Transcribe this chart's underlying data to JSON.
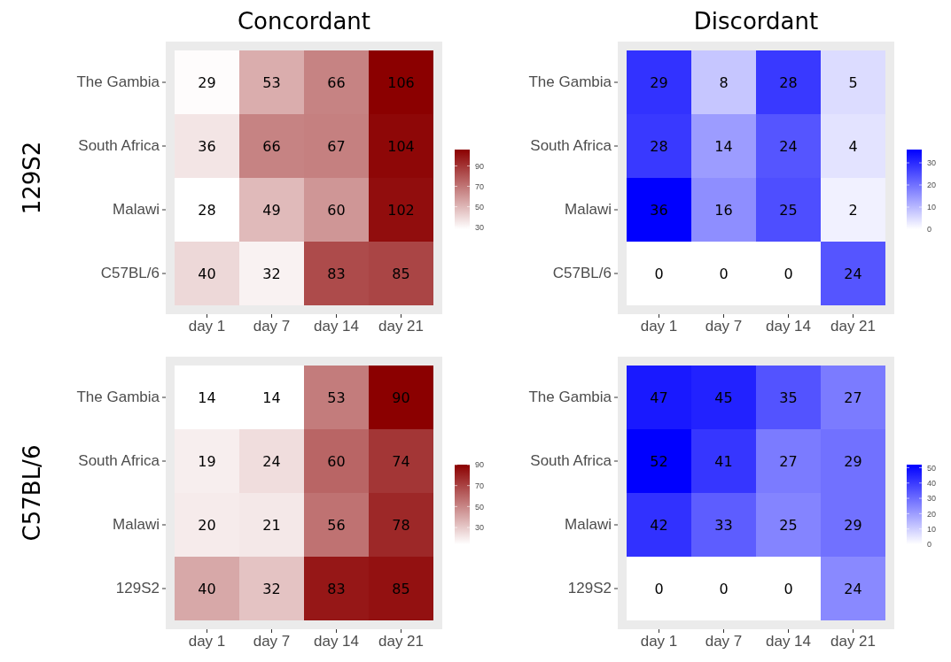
{
  "chart_data": [
    {
      "type": "heatmap",
      "title": "Concordant",
      "ylabel": "129S2",
      "color": "#8b0000",
      "categories": [
        "day 1",
        "day 7",
        "day 14",
        "day 21"
      ],
      "y_categories": [
        "The Gambia",
        "South Africa",
        "Malawi",
        "C57BL/6"
      ],
      "data_labels": true,
      "cells": [
        [
          29,
          53,
          66,
          106
        ],
        [
          36,
          66,
          67,
          104
        ],
        [
          28,
          49,
          60,
          102
        ],
        [
          40,
          32,
          83,
          85
        ]
      ],
      "clim": [
        28,
        106
      ],
      "cticks": [
        30,
        50,
        70,
        90
      ]
    },
    {
      "type": "heatmap",
      "title": "Discordant",
      "color": "#0000ff",
      "categories": [
        "day 1",
        "day 7",
        "day 14",
        "day 21"
      ],
      "y_categories": [
        "The Gambia",
        "South Africa",
        "Malawi",
        "C57BL/6"
      ],
      "data_labels": true,
      "cells": [
        [
          29,
          8,
          28,
          5
        ],
        [
          28,
          14,
          24,
          4
        ],
        [
          36,
          16,
          25,
          2
        ],
        [
          0,
          0,
          0,
          24
        ]
      ],
      "clim": [
        0,
        36
      ],
      "cticks": [
        0,
        10,
        20,
        30
      ]
    },
    {
      "type": "heatmap",
      "ylabel": "C57BL/6",
      "color": "#8b0000",
      "categories": [
        "day 1",
        "day 7",
        "day 14",
        "day 21"
      ],
      "y_categories": [
        "The Gambia",
        "South Africa",
        "Malawi",
        "129S2"
      ],
      "data_labels": true,
      "cells": [
        [
          14,
          14,
          53,
          90
        ],
        [
          19,
          24,
          60,
          74
        ],
        [
          20,
          21,
          56,
          78
        ],
        [
          40,
          32,
          83,
          85
        ]
      ],
      "clim": [
        14,
        90
      ],
      "cticks": [
        30,
        50,
        70,
        90
      ]
    },
    {
      "type": "heatmap",
      "color": "#0000ff",
      "categories": [
        "day 1",
        "day 7",
        "day 14",
        "day 21"
      ],
      "y_categories": [
        "The Gambia",
        "South Africa",
        "Malawi",
        "129S2"
      ],
      "data_labels": true,
      "cells": [
        [
          47,
          45,
          35,
          27
        ],
        [
          52,
          41,
          27,
          29
        ],
        [
          42,
          33,
          25,
          29
        ],
        [
          0,
          0,
          0,
          24
        ]
      ],
      "clim": [
        0,
        52
      ],
      "cticks": [
        0,
        10,
        20,
        30,
        40,
        50
      ]
    }
  ]
}
